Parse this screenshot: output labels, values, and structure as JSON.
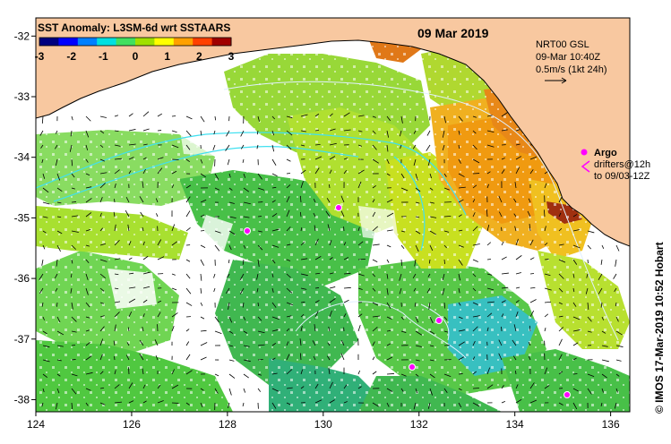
{
  "title": "SST Anomaly: L3SM-6d wrt SSTAARS",
  "date": "09 Mar 2019",
  "colorbar": {
    "ticks": [
      "-3",
      "-2",
      "-1",
      "0",
      "1",
      "2",
      "3"
    ],
    "colors": [
      "#00007f",
      "#0000ff",
      "#0080ff",
      "#00e0e0",
      "#40e060",
      "#a0e000",
      "#ffff00",
      "#ffa000",
      "#ff4000",
      "#a00000"
    ]
  },
  "current_info": {
    "source": "NRT00 GSL",
    "time": "09-Mar 10:40Z",
    "scale": "0.5m/s (1kt 24h)"
  },
  "argo": {
    "label": "Argo",
    "drifters_line1": "drifters@12h",
    "drifters_line2": "to 09/03-12Z",
    "color": "#ff00ff"
  },
  "credit": "© IMOS 17-Mar-2019 10:52 Hobart",
  "x_ticks": [
    "124",
    "126",
    "128",
    "130",
    "132",
    "134",
    "136"
  ],
  "y_ticks": [
    "-32",
    "-33",
    "-34",
    "-35",
    "-36",
    "-37",
    "-38"
  ],
  "colors": {
    "land": "#f8c8a0",
    "no_data": "#ffffff",
    "currents": "#40e0f0"
  }
}
